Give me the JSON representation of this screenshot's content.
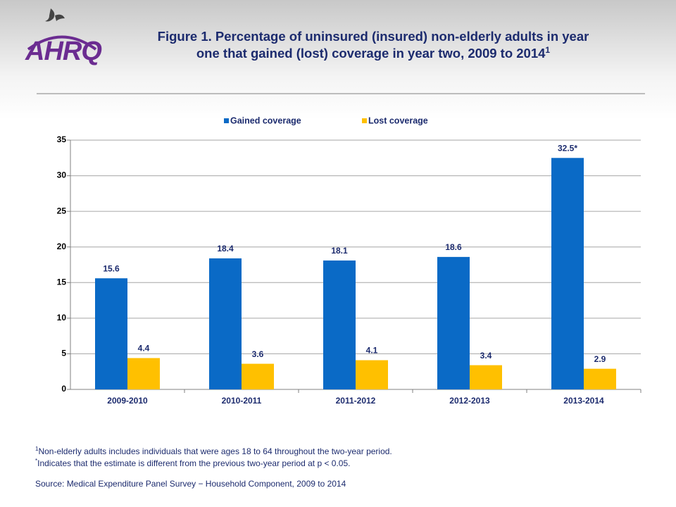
{
  "logo": "AHRQ",
  "chart_data": {
    "type": "bar",
    "title": "Figure 1. Percentage of uninsured (insured) non-elderly adults in year one that gained (lost) coverage in year two, 2009 to 2014",
    "title_note": "1",
    "categories": [
      "2009-2010",
      "2010-2011",
      "2011-2012",
      "2012-2013",
      "2013-2014"
    ],
    "series": [
      {
        "name": "Gained coverage",
        "color": "#0a6ac6",
        "values": [
          15.6,
          18.4,
          18.1,
          18.6,
          32.5
        ],
        "value_labels": [
          "15.6",
          "18.4",
          "18.1",
          "18.6",
          "32.5*"
        ]
      },
      {
        "name": "Lost coverage",
        "color": "#ffc000",
        "values": [
          4.4,
          3.6,
          4.1,
          3.4,
          2.9
        ]
      }
    ],
    "ylim": [
      0,
      35
    ],
    "yticks": [
      0,
      5,
      10,
      15,
      20,
      25,
      30,
      35
    ],
    "grid": true,
    "legend": "top",
    "footnotes": [
      {
        "marker": "1",
        "text": "Non-elderly adults includes individuals that were ages 18 to 64 throughout the two-year period."
      },
      {
        "marker": "*",
        "text": "Indicates that the estimate is different from the previous two-year period at p < 0.05."
      }
    ],
    "source": "Source: Medical Expenditure Panel Survey − Household Component, 2009 to 2014"
  }
}
